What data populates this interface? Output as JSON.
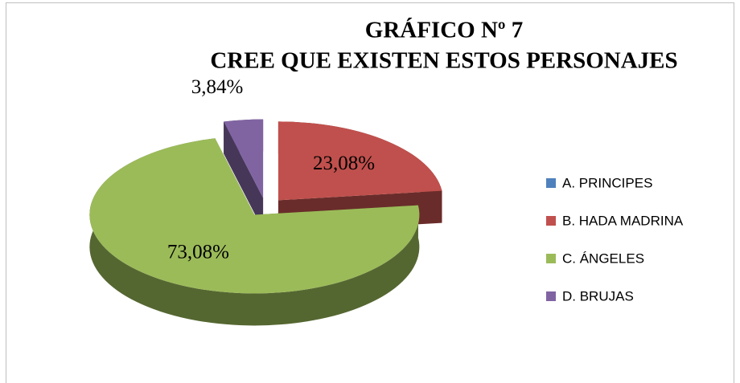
{
  "chart_data": {
    "type": "pie",
    "title": "GRÁFICO Nº 7",
    "subtitle": "CREE QUE EXISTEN ESTOS PERSONAJES",
    "categories": [
      "A. PRINCIPES",
      "B. HADA MADRINA",
      "C. ÁNGELES",
      "D. BRUJAS"
    ],
    "values": [
      0,
      23.08,
      73.08,
      3.84
    ],
    "value_labels": [
      null,
      "23,08%",
      "73,08%",
      "3,84%"
    ],
    "colors": [
      "#4f81bd",
      "#c0504d",
      "#9bbb59",
      "#8064a2"
    ],
    "legend": "right"
  }
}
